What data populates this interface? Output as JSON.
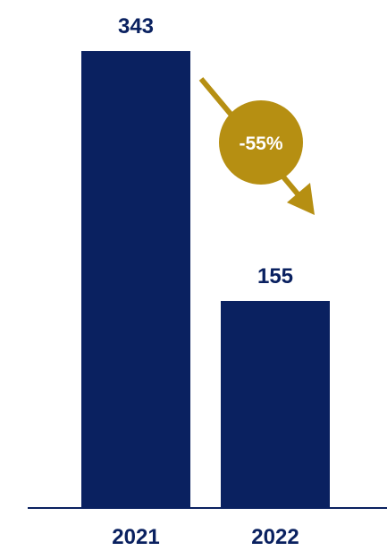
{
  "chart_data": {
    "type": "bar",
    "categories": [
      "2021",
      "2022"
    ],
    "values": [
      343,
      155
    ],
    "data_labels": [
      "343",
      "155"
    ],
    "ylim": [
      0,
      343
    ],
    "grid": false,
    "annotation": {
      "text": "-55%",
      "from": "2021",
      "to": "2022"
    },
    "colors": {
      "bar": "#0a2160",
      "accent": "#b68f12",
      "axis": "#0a2160",
      "annotation_text": "#ffffff"
    }
  }
}
